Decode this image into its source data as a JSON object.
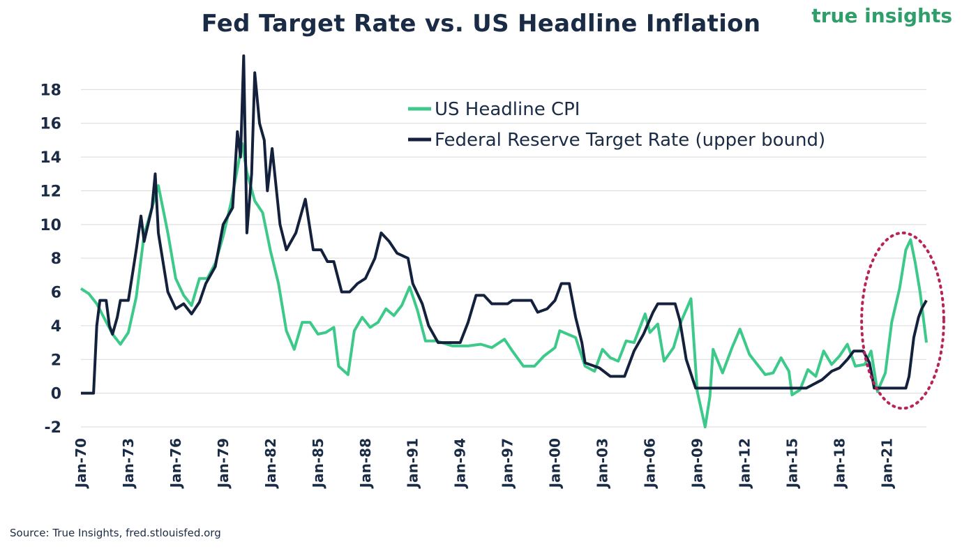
{
  "brand": "true insights",
  "source": "Source: True Insights, fred.stlouisfed.org",
  "colors": {
    "cpi": "#3cc98a",
    "fed": "#14213d",
    "highlight": "#b8235a",
    "grid": "#d9d9d9",
    "text": "#1a2b45"
  },
  "chart_data": {
    "type": "line",
    "title": "Fed Target Rate vs. US Headline Inflation",
    "xlabel": "",
    "ylabel": "",
    "xlim": [
      1970.0,
      2023.5
    ],
    "ylim": [
      -2,
      20
    ],
    "yticks": [
      -2,
      0,
      2,
      4,
      6,
      8,
      10,
      12,
      14,
      16,
      18
    ],
    "xticks": [
      {
        "x": 1970,
        "label": "Jan-70"
      },
      {
        "x": 1973,
        "label": "Jan-73"
      },
      {
        "x": 1976,
        "label": "Jan-76"
      },
      {
        "x": 1979,
        "label": "Jan-79"
      },
      {
        "x": 1982,
        "label": "Jan-82"
      },
      {
        "x": 1985,
        "label": "Jan-85"
      },
      {
        "x": 1988,
        "label": "Jan-88"
      },
      {
        "x": 1991,
        "label": "Jan-91"
      },
      {
        "x": 1994,
        "label": "Jan-94"
      },
      {
        "x": 1997,
        "label": "Jan-97"
      },
      {
        "x": 2000,
        "label": "Jan-00"
      },
      {
        "x": 2003,
        "label": "Jan-03"
      },
      {
        "x": 2006,
        "label": "Jan-06"
      },
      {
        "x": 2009,
        "label": "Jan-09"
      },
      {
        "x": 2012,
        "label": "Jan-12"
      },
      {
        "x": 2015,
        "label": "Jan-15"
      },
      {
        "x": 2018,
        "label": "Jan-18"
      },
      {
        "x": 2021,
        "label": "Jan-21"
      }
    ],
    "grid": true,
    "legend": "top-center",
    "series": [
      {
        "name": "US Headline CPI",
        "points": [
          [
            1970.0,
            6.2
          ],
          [
            1970.5,
            5.9
          ],
          [
            1971.0,
            5.3
          ],
          [
            1971.5,
            4.4
          ],
          [
            1972.0,
            3.5
          ],
          [
            1972.5,
            2.9
          ],
          [
            1973.0,
            3.6
          ],
          [
            1973.5,
            5.7
          ],
          [
            1974.0,
            9.4
          ],
          [
            1974.5,
            11.0
          ],
          [
            1974.9,
            12.3
          ],
          [
            1975.5,
            9.5
          ],
          [
            1976.0,
            6.8
          ],
          [
            1976.5,
            5.8
          ],
          [
            1977.0,
            5.2
          ],
          [
            1977.5,
            6.8
          ],
          [
            1978.0,
            6.8
          ],
          [
            1978.5,
            7.7
          ],
          [
            1979.0,
            9.3
          ],
          [
            1979.5,
            11.3
          ],
          [
            1980.2,
            14.8
          ],
          [
            1980.5,
            13.1
          ],
          [
            1981.0,
            11.4
          ],
          [
            1981.5,
            10.7
          ],
          [
            1982.0,
            8.4
          ],
          [
            1982.5,
            6.5
          ],
          [
            1983.0,
            3.7
          ],
          [
            1983.5,
            2.6
          ],
          [
            1984.0,
            4.2
          ],
          [
            1984.5,
            4.2
          ],
          [
            1985.0,
            3.5
          ],
          [
            1985.5,
            3.6
          ],
          [
            1986.0,
            3.9
          ],
          [
            1986.3,
            1.6
          ],
          [
            1986.9,
            1.1
          ],
          [
            1987.3,
            3.7
          ],
          [
            1987.8,
            4.5
          ],
          [
            1988.3,
            3.9
          ],
          [
            1988.8,
            4.2
          ],
          [
            1989.3,
            5.0
          ],
          [
            1989.8,
            4.6
          ],
          [
            1990.3,
            5.2
          ],
          [
            1990.8,
            6.3
          ],
          [
            1991.3,
            4.9
          ],
          [
            1991.8,
            3.1
          ],
          [
            1992.5,
            3.1
          ],
          [
            1993.5,
            2.8
          ],
          [
            1994.5,
            2.8
          ],
          [
            1995.3,
            2.9
          ],
          [
            1996.0,
            2.7
          ],
          [
            1996.8,
            3.2
          ],
          [
            1997.3,
            2.5
          ],
          [
            1998.0,
            1.6
          ],
          [
            1998.7,
            1.6
          ],
          [
            1999.3,
            2.2
          ],
          [
            2000.0,
            2.7
          ],
          [
            2000.3,
            3.7
          ],
          [
            2000.8,
            3.5
          ],
          [
            2001.3,
            3.3
          ],
          [
            2001.9,
            1.6
          ],
          [
            2002.5,
            1.3
          ],
          [
            2003.0,
            2.6
          ],
          [
            2003.5,
            2.1
          ],
          [
            2004.0,
            1.9
          ],
          [
            2004.5,
            3.1
          ],
          [
            2005.0,
            3.0
          ],
          [
            2005.7,
            4.7
          ],
          [
            2006.0,
            3.6
          ],
          [
            2006.5,
            4.1
          ],
          [
            2006.9,
            1.9
          ],
          [
            2007.5,
            2.7
          ],
          [
            2008.0,
            4.3
          ],
          [
            2008.6,
            5.6
          ],
          [
            2009.0,
            0.1
          ],
          [
            2009.5,
            -2.0
          ],
          [
            2009.8,
            -0.2
          ],
          [
            2010.0,
            2.6
          ],
          [
            2010.6,
            1.2
          ],
          [
            2011.2,
            2.7
          ],
          [
            2011.7,
            3.8
          ],
          [
            2012.3,
            2.3
          ],
          [
            2012.8,
            1.7
          ],
          [
            2013.3,
            1.1
          ],
          [
            2013.8,
            1.2
          ],
          [
            2014.3,
            2.1
          ],
          [
            2014.8,
            1.3
          ],
          [
            2015.0,
            -0.1
          ],
          [
            2015.5,
            0.2
          ],
          [
            2016.0,
            1.4
          ],
          [
            2016.5,
            1.0
          ],
          [
            2017.0,
            2.5
          ],
          [
            2017.5,
            1.7
          ],
          [
            2018.0,
            2.2
          ],
          [
            2018.5,
            2.9
          ],
          [
            2019.0,
            1.6
          ],
          [
            2019.6,
            1.7
          ],
          [
            2020.0,
            2.5
          ],
          [
            2020.4,
            0.1
          ],
          [
            2020.9,
            1.2
          ],
          [
            2021.3,
            4.2
          ],
          [
            2021.8,
            6.2
          ],
          [
            2022.2,
            8.5
          ],
          [
            2022.5,
            9.1
          ],
          [
            2022.8,
            7.7
          ],
          [
            2023.1,
            6.0
          ],
          [
            2023.5,
            3.0
          ]
        ]
      },
      {
        "name": "Federal Reserve Target Rate (upper bound)",
        "points": [
          [
            1970.0,
            0
          ],
          [
            1970.8,
            0
          ],
          [
            1971.0,
            4.0
          ],
          [
            1971.2,
            5.5
          ],
          [
            1971.6,
            5.5
          ],
          [
            1971.8,
            4.0
          ],
          [
            1972.0,
            3.5
          ],
          [
            1972.3,
            4.5
          ],
          [
            1972.5,
            5.5
          ],
          [
            1973.0,
            5.5
          ],
          [
            1973.5,
            8.5
          ],
          [
            1973.8,
            10.5
          ],
          [
            1974.0,
            9.0
          ],
          [
            1974.5,
            11.0
          ],
          [
            1974.7,
            13.0
          ],
          [
            1974.9,
            9.5
          ],
          [
            1975.5,
            6.0
          ],
          [
            1976.0,
            5.0
          ],
          [
            1976.5,
            5.3
          ],
          [
            1977.0,
            4.7
          ],
          [
            1977.5,
            5.4
          ],
          [
            1977.9,
            6.5
          ],
          [
            1978.5,
            7.5
          ],
          [
            1979.0,
            10.0
          ],
          [
            1979.6,
            11.0
          ],
          [
            1979.9,
            15.5
          ],
          [
            1980.1,
            14.0
          ],
          [
            1980.3,
            20.0
          ],
          [
            1980.5,
            9.5
          ],
          [
            1980.8,
            13.0
          ],
          [
            1981.0,
            19.0
          ],
          [
            1981.3,
            16.0
          ],
          [
            1981.6,
            15.0
          ],
          [
            1981.8,
            12.0
          ],
          [
            1982.1,
            14.5
          ],
          [
            1982.6,
            10.0
          ],
          [
            1983.0,
            8.5
          ],
          [
            1983.6,
            9.5
          ],
          [
            1984.2,
            11.5
          ],
          [
            1984.7,
            8.5
          ],
          [
            1985.2,
            8.5
          ],
          [
            1985.6,
            7.8
          ],
          [
            1986.0,
            7.8
          ],
          [
            1986.5,
            6.0
          ],
          [
            1987.0,
            6.0
          ],
          [
            1987.5,
            6.5
          ],
          [
            1988.0,
            6.8
          ],
          [
            1988.6,
            8.0
          ],
          [
            1989.0,
            9.5
          ],
          [
            1989.5,
            9.0
          ],
          [
            1990.0,
            8.3
          ],
          [
            1990.7,
            8.0
          ],
          [
            1991.0,
            6.5
          ],
          [
            1991.6,
            5.3
          ],
          [
            1992.0,
            4.0
          ],
          [
            1992.6,
            3.0
          ],
          [
            1993.0,
            3.0
          ],
          [
            1994.0,
            3.0
          ],
          [
            1994.5,
            4.2
          ],
          [
            1995.0,
            5.8
          ],
          [
            1995.5,
            5.8
          ],
          [
            1996.0,
            5.3
          ],
          [
            1997.0,
            5.3
          ],
          [
            1997.3,
            5.5
          ],
          [
            1998.5,
            5.5
          ],
          [
            1998.9,
            4.8
          ],
          [
            1999.5,
            5.0
          ],
          [
            2000.0,
            5.5
          ],
          [
            2000.4,
            6.5
          ],
          [
            2000.9,
            6.5
          ],
          [
            2001.3,
            4.5
          ],
          [
            2001.7,
            3.0
          ],
          [
            2001.9,
            1.8
          ],
          [
            2002.8,
            1.5
          ],
          [
            2003.5,
            1.0
          ],
          [
            2004.4,
            1.0
          ],
          [
            2005.0,
            2.5
          ],
          [
            2005.6,
            3.5
          ],
          [
            2006.2,
            4.8
          ],
          [
            2006.5,
            5.3
          ],
          [
            2007.6,
            5.3
          ],
          [
            2007.9,
            4.3
          ],
          [
            2008.3,
            2.0
          ],
          [
            2008.9,
            0.3
          ],
          [
            2015.9,
            0.3
          ],
          [
            2016.9,
            0.8
          ],
          [
            2017.5,
            1.3
          ],
          [
            2018.0,
            1.5
          ],
          [
            2018.5,
            2.0
          ],
          [
            2018.9,
            2.5
          ],
          [
            2019.5,
            2.5
          ],
          [
            2019.9,
            1.8
          ],
          [
            2020.2,
            0.3
          ],
          [
            2022.2,
            0.3
          ],
          [
            2022.4,
            1.0
          ],
          [
            2022.7,
            3.3
          ],
          [
            2023.0,
            4.5
          ],
          [
            2023.2,
            5.0
          ],
          [
            2023.5,
            5.5
          ]
        ]
      }
    ],
    "annotation": {
      "type": "ellipse",
      "x_center": 2022.0,
      "y_center": 4.3,
      "x_radius": 2.6,
      "y_radius": 5.2
    }
  }
}
